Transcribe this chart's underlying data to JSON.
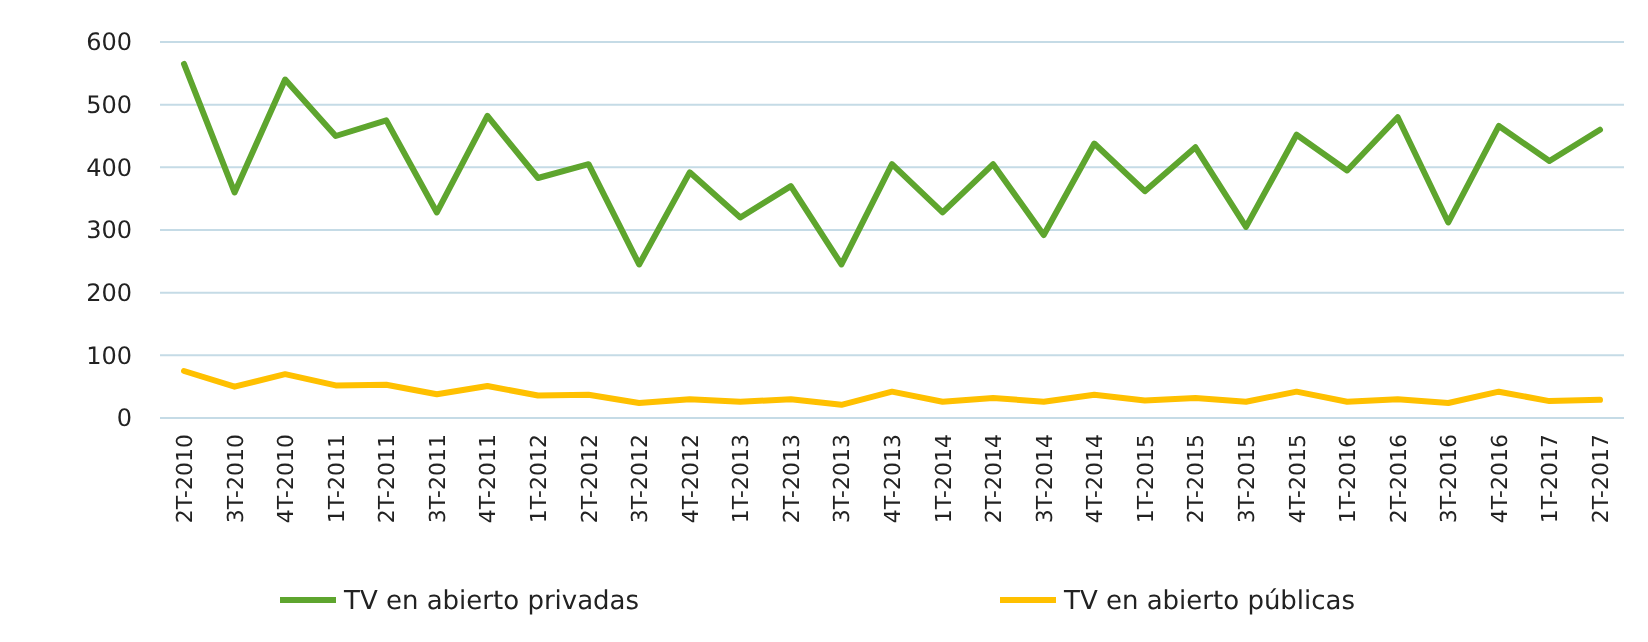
{
  "chart_data": {
    "type": "line",
    "categories": [
      "2T-2010",
      "3T-2010",
      "4T-2010",
      "1T-2011",
      "2T-2011",
      "3T-2011",
      "4T-2011",
      "1T-2012",
      "2T-2012",
      "3T-2012",
      "4T-2012",
      "1T-2013",
      "2T-2013",
      "3T-2013",
      "4T-2013",
      "1T-2014",
      "2T-2014",
      "3T-2014",
      "4T-2014",
      "1T-2015",
      "2T-2015",
      "3T-2015",
      "4T-2015",
      "1T-2016",
      "2T-2016",
      "3T-2016",
      "4T-2016",
      "1T-2017",
      "2T-2017"
    ],
    "series": [
      {
        "name": "TV en abierto privadas",
        "color": "#5ea52e",
        "values": [
          565,
          360,
          540,
          450,
          475,
          328,
          482,
          383,
          405,
          245,
          392,
          320,
          370,
          245,
          405,
          328,
          405,
          292,
          438,
          362,
          432,
          305,
          452,
          395,
          480,
          312,
          466,
          410,
          460
        ]
      },
      {
        "name": "TV en abierto públicas",
        "color": "#ffc000",
        "values": [
          75,
          50,
          70,
          52,
          53,
          38,
          51,
          36,
          37,
          24,
          30,
          26,
          30,
          21,
          42,
          26,
          32,
          26,
          37,
          28,
          32,
          26,
          42,
          26,
          30,
          24,
          42,
          27,
          29
        ]
      }
    ],
    "ylim": [
      0,
      600
    ],
    "yticks": [
      0,
      100,
      200,
      300,
      400,
      500,
      600
    ],
    "grid": "y",
    "legend": "bottom",
    "marker": "none",
    "line_style": "solid"
  }
}
